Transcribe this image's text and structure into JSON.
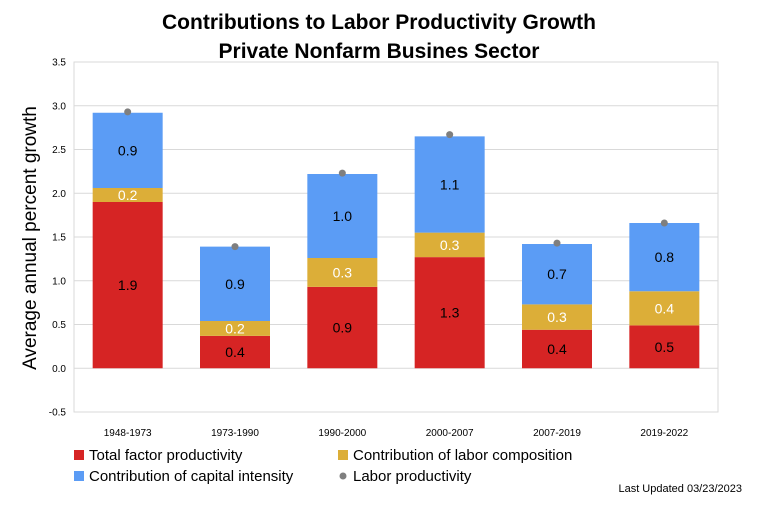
{
  "chart_data": {
    "type": "bar",
    "stacked": true,
    "title_lines": [
      "Contributions to Labor Productivity Growth",
      "Private Nonfarm Busines Sector"
    ],
    "ylabel": "Average annual percent growth",
    "xlabel": "",
    "ylim": [
      -0.5,
      3.5
    ],
    "yticks": [
      "-0.5",
      "0.0",
      "0.5",
      "1.0",
      "1.5",
      "2.0",
      "2.5",
      "3.0",
      "3.5"
    ],
    "ytick_values": [
      -0.5,
      0.0,
      0.5,
      1.0,
      1.5,
      2.0,
      2.5,
      3.0,
      3.5
    ],
    "grid": true,
    "legend_placement": "bottom",
    "categories": [
      "1948-1973",
      "1973-1990",
      "1990-2000",
      "2000-2007",
      "2007-2019",
      "2019-2022"
    ],
    "series": [
      {
        "name": "Total factor productivity",
        "color": "#d62424",
        "label_color": "#000000",
        "values": [
          1.9,
          0.37,
          0.93,
          1.27,
          0.44,
          0.49
        ],
        "labels": [
          "1.9",
          "0.4",
          "0.9",
          "1.3",
          "0.4",
          "0.5"
        ]
      },
      {
        "name": "Contribution of labor composition",
        "color": "#dcae38",
        "label_color": "#ffffff",
        "values": [
          0.16,
          0.17,
          0.33,
          0.28,
          0.29,
          0.39
        ],
        "labels": [
          "0.2",
          "0.2",
          "0.3",
          "0.3",
          "0.3",
          "0.4"
        ]
      },
      {
        "name": "Contribution of capital intensity",
        "color": "#5b9cf5",
        "label_color": "#000000",
        "values": [
          0.86,
          0.85,
          0.96,
          1.1,
          0.69,
          0.78
        ],
        "labels": [
          "0.9",
          "0.9",
          "1.0",
          "1.1",
          "0.7",
          "0.8"
        ]
      }
    ],
    "markers": {
      "name": "Labor productivity",
      "color": "#7f7f7f",
      "values": [
        2.93,
        1.39,
        2.23,
        2.67,
        1.43,
        1.66
      ]
    },
    "footer": "Last Updated 03/23/2023"
  }
}
